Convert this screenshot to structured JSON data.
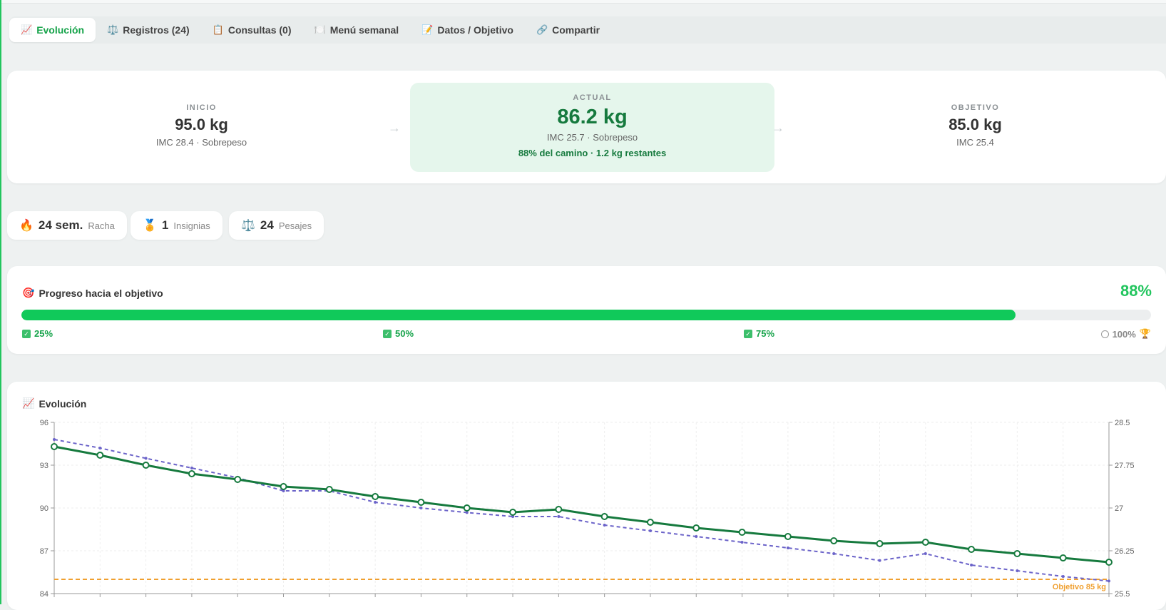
{
  "tabs": [
    {
      "icon": "📈",
      "label": "Evolución",
      "active": true
    },
    {
      "icon": "⚖️",
      "label": "Registros (24)"
    },
    {
      "icon": "📋",
      "label": "Consultas (0)"
    },
    {
      "icon": "🍽️",
      "label": "Menú semanal"
    },
    {
      "icon": "📝",
      "label": "Datos / Objetivo"
    },
    {
      "icon": "🔗",
      "label": "Compartir"
    }
  ],
  "summary": {
    "start": {
      "label": "INICIO",
      "value": "95.0 kg",
      "sub": "IMC 28.4 · Sobrepeso"
    },
    "current": {
      "label": "ACTUAL",
      "value": "86.2 kg",
      "sub": "IMC 25.7 · Sobrepeso",
      "extra": "88% del camino · 1.2 kg restantes"
    },
    "goal": {
      "label": "OBJETIVO",
      "value": "85.0 kg",
      "sub": "IMC 25.4"
    },
    "arrow": "→"
  },
  "pills": [
    {
      "icon": "🔥",
      "number": "24 sem.",
      "text": "Racha"
    },
    {
      "icon": "🏅",
      "number": "1",
      "text": "Insignias"
    },
    {
      "icon": "⚖️",
      "number": "24",
      "text": "Pesajes"
    }
  ],
  "progress": {
    "icon": "🎯",
    "title": "Progreso hacia el objetivo",
    "percent_label": "88%",
    "percent": 88,
    "milestones": [
      {
        "label": "25%",
        "done": true
      },
      {
        "label": "50%",
        "done": true
      },
      {
        "label": "75%",
        "done": true
      },
      {
        "label": "100%",
        "done": false,
        "trophy": "🏆"
      }
    ]
  },
  "chart_section": {
    "icon": "📈",
    "title": "Evolución"
  },
  "chart_data": {
    "type": "line",
    "y_left": {
      "min": 84,
      "max": 96,
      "ticks": [
        "84",
        "87",
        "90",
        "93",
        "96"
      ]
    },
    "y_right": {
      "min": 25.5,
      "max": 28.5,
      "ticks": [
        "25.5",
        "26.25",
        "27",
        "27.75",
        "28.5"
      ]
    },
    "series": [
      {
        "axis": "left",
        "color": "#167a3e",
        "style": "solid",
        "markers": true,
        "values": [
          94.3,
          93.7,
          93.0,
          92.4,
          92.0,
          91.5,
          91.3,
          90.8,
          90.4,
          90.0,
          89.7,
          89.9,
          89.4,
          89.0,
          88.6,
          88.3,
          88.0,
          87.7,
          87.5,
          87.6,
          87.1,
          86.8,
          86.5,
          86.2
        ]
      },
      {
        "axis": "right",
        "color": "#6b63c9",
        "style": "dashed",
        "markers": false,
        "values": [
          28.2,
          28.05,
          27.87,
          27.7,
          27.53,
          27.3,
          27.3,
          27.1,
          27.0,
          26.92,
          26.85,
          26.85,
          26.7,
          26.6,
          26.5,
          26.4,
          26.3,
          26.2,
          26.08,
          26.2,
          26.0,
          25.9,
          25.8,
          25.72
        ]
      }
    ],
    "goal_line": {
      "value": 85,
      "label": "Objetivo 85 kg",
      "color": "#f0a030"
    },
    "grid": true
  },
  "colors": {
    "accent": "#22c55e",
    "dark_green": "#167a3e",
    "bmi_line": "#6b63c9",
    "goal": "#f0a030"
  }
}
